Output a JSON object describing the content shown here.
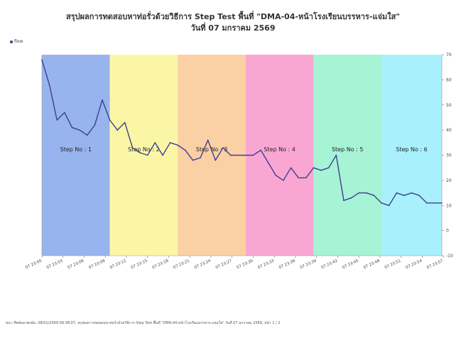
{
  "chart_data": {
    "type": "line",
    "title": "สรุปผลการทดสอบหาท่อรั่วด้วยวิธีการ Step Test พื้นที่ \"DMA-04-หน้าโรงเรียนบรรหาร-แจ่มใส\"",
    "subtitle": "วันที่ 07 มกราคม 2569",
    "ylim": [
      -10,
      70
    ],
    "yticks": [
      -10,
      0,
      10,
      20,
      30,
      40,
      50,
      60,
      70
    ],
    "xticks": [
      "07 23:00",
      "07 23:03",
      "07 23:06",
      "07 23:09",
      "07 23:12",
      "07 23:15",
      "07 23:18",
      "07 23:21",
      "07 23:24",
      "07 23:27",
      "07 23:30",
      "07 23:33",
      "07 23:36",
      "07 23:39",
      "07 23:42",
      "07 23:45",
      "07 23:48",
      "07 23:51",
      "07 23:54",
      "07 23:57"
    ],
    "legend_position": "top-left",
    "steps": [
      {
        "label": "Step No : 1",
        "start": 0,
        "end": 9,
        "color": "#97b4ee"
      },
      {
        "label": "Step No : 2",
        "start": 9,
        "end": 18,
        "color": "#fbf6a6"
      },
      {
        "label": "Step No : 3",
        "start": 18,
        "end": 27,
        "color": "#fbd0a4"
      },
      {
        "label": "Step No : 4",
        "start": 27,
        "end": 36,
        "color": "#f9a7d2"
      },
      {
        "label": "Step No : 5",
        "start": 36,
        "end": 45,
        "color": "#a6f3d5"
      },
      {
        "label": "Step No : 6",
        "start": 45,
        "end": 53,
        "color": "#a8f0fb"
      }
    ],
    "series": [
      {
        "name": "flow",
        "color": "#3f3f8f",
        "x": [
          0,
          1,
          2,
          3,
          4,
          5,
          6,
          7,
          8,
          9,
          10,
          11,
          12,
          13,
          14,
          15,
          16,
          17,
          18,
          19,
          20,
          21,
          22,
          23,
          24,
          25,
          26,
          27,
          28,
          29,
          30,
          31,
          32,
          33,
          34,
          35,
          36,
          37,
          38,
          39,
          40,
          41,
          42,
          43,
          44,
          45,
          46,
          47,
          48,
          49,
          50,
          51,
          52,
          53
        ],
        "values": [
          68,
          58,
          44,
          47,
          41,
          40,
          38,
          42,
          52,
          44,
          40,
          43,
          33,
          31,
          30,
          35,
          30,
          35,
          34,
          32,
          28,
          29,
          36,
          28,
          33,
          30,
          30,
          30,
          30,
          32,
          27,
          22,
          20,
          25,
          21,
          21,
          25,
          24,
          25,
          30,
          12,
          13,
          15,
          15,
          14,
          11,
          10,
          15,
          14,
          15,
          14,
          11,
          11,
          11
        ]
      }
    ]
  },
  "footer": "ขนา ทึพย์ลมาพงษ์ธ, 08/01/2569 09:38:07, สรุปผลการทดสอบหาท่อรั่วด้วยวิธีการ Step Test พื้นที่ \"DMA-04-หน้าโรงเรียนบรรหาร-แจ่มใส\" วันที่ 07 มกราคม 2569, หน้า 1 / 2"
}
